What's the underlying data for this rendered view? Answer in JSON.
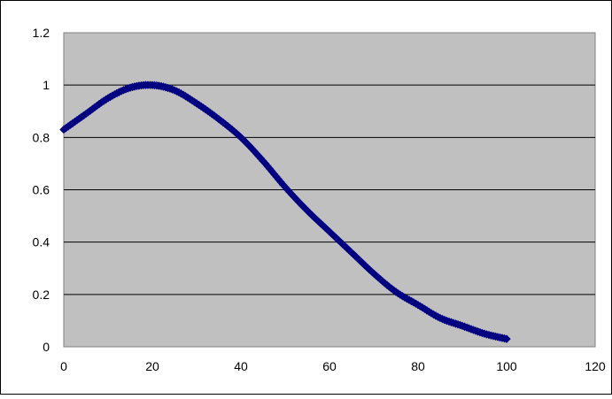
{
  "chart_data": {
    "type": "scatter",
    "title": "",
    "xlabel": "",
    "ylabel": "",
    "xlim": [
      0,
      120
    ],
    "ylim": [
      0,
      1.2
    ],
    "x_ticks": [
      "0",
      "20",
      "40",
      "60",
      "80",
      "100",
      "120"
    ],
    "y_ticks": [
      "0",
      "0.2",
      "0.4",
      "0.6",
      "0.8",
      "1",
      "1.2"
    ],
    "grid": "horizontal",
    "legend": "none",
    "plot_background": "#c0c0c0",
    "series": [
      {
        "name": "",
        "color": "#000080",
        "marker": "diamond",
        "line": true,
        "x": [
          0,
          5,
          10,
          15,
          20,
          25,
          30,
          35,
          40,
          45,
          50,
          55,
          60,
          65,
          70,
          75,
          80,
          85,
          90,
          95,
          100
        ],
        "y": [
          0.83,
          0.89,
          0.95,
          0.99,
          1.0,
          0.98,
          0.93,
          0.87,
          0.8,
          0.71,
          0.61,
          0.52,
          0.44,
          0.36,
          0.28,
          0.21,
          0.16,
          0.11,
          0.08,
          0.05,
          0.03
        ]
      }
    ]
  }
}
